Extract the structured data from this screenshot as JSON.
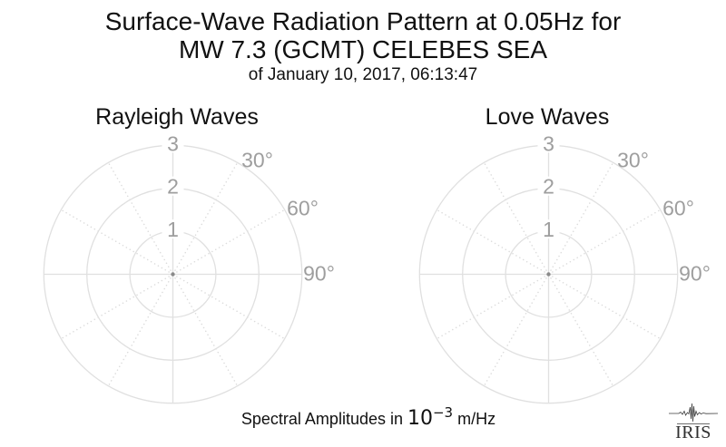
{
  "header": {
    "line1": "Surface-Wave Radiation Pattern at 0.05Hz for",
    "line2": "MW 7.3 (GCMT) CELEBES SEA",
    "subtitle": "of January 10, 2017, 06:13:47"
  },
  "footer": {
    "prefix": "Spectral Amplitudes in ",
    "mantissa": "10",
    "exponent": "−3",
    "suffix": " m/Hz"
  },
  "logo": {
    "text": "IRIS"
  },
  "colors": {
    "background": "#ffffff",
    "grid": "#e0e0e0",
    "grid_dotted": "#dcdcdc",
    "tick_label": "#9e9e9e",
    "text": "#111111",
    "center_dot": "#8a8a8a",
    "logo": "#3c3c3c"
  },
  "chart_data": [
    {
      "type": "polar",
      "title": "Rayleigh Waves",
      "r_axis": {
        "ticks": [
          1,
          2,
          3
        ],
        "max": 3,
        "units": "10^-3 m/Hz"
      },
      "theta_axis": {
        "zero_location": "top",
        "direction": "clockwise",
        "grid_step_deg": 30,
        "labeled_ticks_deg": [
          30,
          60,
          90
        ],
        "tick_labels": [
          "30°",
          "60°",
          "90°"
        ]
      },
      "series": [
        {
          "name": "rayleigh-radiation-pattern",
          "points": [
            {
              "theta_deg": 0,
              "r": 0
            }
          ],
          "display": "single dot at origin (amplitude ~0 at this scale)"
        }
      ]
    },
    {
      "type": "polar",
      "title": "Love Waves",
      "r_axis": {
        "ticks": [
          1,
          2,
          3
        ],
        "max": 3,
        "units": "10^-3 m/Hz"
      },
      "theta_axis": {
        "zero_location": "top",
        "direction": "clockwise",
        "grid_step_deg": 30,
        "labeled_ticks_deg": [
          30,
          60,
          90
        ],
        "tick_labels": [
          "30°",
          "60°",
          "90°"
        ]
      },
      "series": [
        {
          "name": "love-radiation-pattern",
          "points": [
            {
              "theta_deg": 0,
              "r": 0
            }
          ],
          "display": "single dot at origin (amplitude ~0 at this scale)"
        }
      ]
    }
  ]
}
